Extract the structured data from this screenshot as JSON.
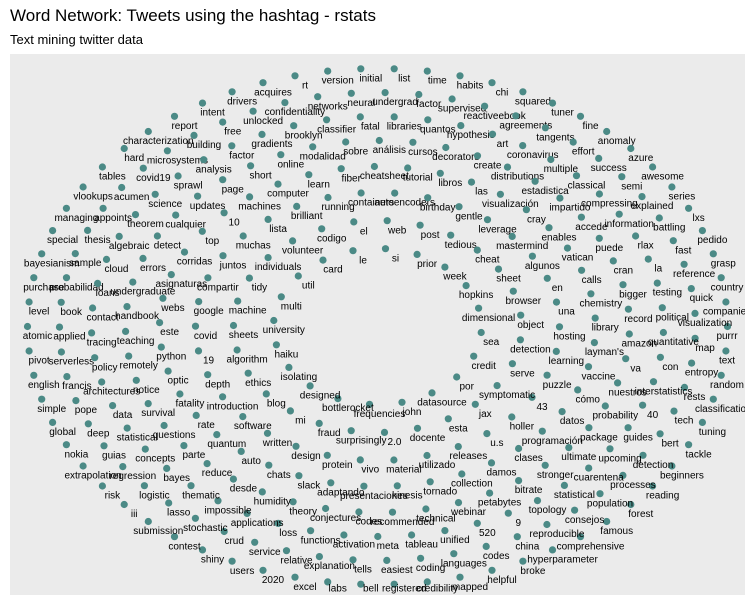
{
  "title": "Word Network: Tweets using the hashtag - rstats",
  "subtitle": "Text mining twitter data",
  "colors": {
    "node": "#4b8a86",
    "panel": "#ebebeb",
    "background": "#ffffff"
  },
  "chart_data": {
    "type": "network",
    "layout": "circular (nodes placed around an ellipse)",
    "grid": false,
    "legend": "none",
    "nodes": [
      "purrr",
      "text",
      "random",
      "classification",
      "tuning",
      "tackle",
      "beginners",
      "reading",
      "forest",
      "famous",
      "comprehensive",
      "hyperparameter",
      "broke",
      "helpful",
      "mapped",
      "credibility",
      "registered",
      "bell",
      "labs",
      "excel",
      "2020",
      "users",
      "shiny",
      "contest",
      "submission",
      "iii",
      "risk",
      "extrapolation",
      "nokia",
      "global",
      "simple",
      "english",
      "pivot",
      "atomic",
      "level",
      "purchase",
      "bayesianism",
      "special",
      "managing",
      "vlookups",
      "tables",
      "hard",
      "characterization",
      "report",
      "intent",
      "drivers",
      "acquires",
      "rt",
      "version",
      "initial",
      "list",
      "time",
      "habits",
      "chi",
      "squared",
      "tuner",
      "fine",
      "anomaly",
      "azure",
      "awesome",
      "series",
      "lxs",
      "pedido",
      "grasp",
      "country",
      "companies",
      "tech",
      "bert",
      "detection",
      "processes",
      "population",
      "consejos",
      "reproducible",
      "china",
      "codes",
      "languages",
      "coding",
      "easiest",
      "tells",
      "explanation",
      "relative",
      "service",
      "crud",
      "stochastic",
      "lasso",
      "logistic",
      "regression",
      "guias",
      "deep",
      "pope",
      "francis",
      "serverless",
      "applied",
      "book",
      "probabilidad",
      "sample",
      "thesis",
      "appoints",
      "acumen",
      "covid19",
      "microsystems",
      "building",
      "free",
      "unlocked",
      "confidentiality",
      "networks",
      "neural",
      "undergrad",
      "factor",
      "supervised",
      "reactiveebook",
      "agreements",
      "tangents",
      "effort",
      "success",
      "semi",
      "explained",
      "battling",
      "fast",
      "reference",
      "quick",
      "visualization",
      "map",
      "entropy",
      "rests",
      "cuarentena",
      "statistical",
      "topology",
      "9",
      "520",
      "unified",
      "tableau",
      "meta",
      "activation",
      "functions",
      "loss",
      "applications",
      "impossible",
      "thematic",
      "bayes",
      "concepts",
      "statistical",
      "data",
      "architectures",
      "policy",
      "tracing",
      "contact",
      "loans",
      "cloud",
      "algebraic",
      "theorem",
      "science",
      "sprawl",
      "analysis",
      "factor",
      "gradients",
      "brooklyn",
      "classifier",
      "fatal",
      "libraries",
      "quantos",
      "hypothesis",
      "art",
      "coronavirus",
      "multiple",
      "classical",
      "compressing",
      "information",
      "rlax",
      "la",
      "testing",
      "political",
      "quantitative",
      "con",
      "interstatistics",
      "40",
      "guides",
      "upcoming",
      "petabytes",
      "webinar",
      "technical",
      "recommended",
      "codes",
      "conjectures",
      "theory",
      "humidity",
      "desde",
      "reduce",
      "parte",
      "questions",
      "survival",
      "notice",
      "remotely",
      "teaching",
      "handbook",
      "undergraduate",
      "errors",
      "detect",
      "cualquier",
      "updates",
      "page",
      "short",
      "online",
      "modalidad",
      "sobre",
      "análisis",
      "cursos",
      "decorators",
      "create",
      "distributions",
      "estadistica",
      "impartido",
      "accede",
      "puede",
      "cran",
      "bigger",
      "record",
      "amazon",
      "va",
      "nuestros",
      "probability",
      "package",
      "ultimate",
      "stronger",
      "bitrate",
      "kinesis",
      "presentaciones",
      "adaptando",
      "slack",
      "chats",
      "auto",
      "quantum",
      "rate",
      "fatality",
      "optic",
      "python",
      "este",
      "webs",
      "asignaturas",
      "corridas",
      "top",
      "10",
      "machines",
      "computer",
      "learn",
      "fiber",
      "cheatsheet",
      "tutorial",
      "libros",
      "las",
      "visualización",
      "cray",
      "enables",
      "vatican",
      "calls",
      "chemistry",
      "library",
      "layman's",
      "vaccine",
      "cómo",
      "datos",
      "programación",
      "clases",
      "damos",
      "collection",
      "tornado",
      "protein",
      "design",
      "written",
      "software",
      "introduction",
      "depth",
      "19",
      "covid",
      "google",
      "compartir",
      "juntos",
      "muchas",
      "lista",
      "brilliant",
      "running",
      "containers",
      "autoencoders",
      "birthday",
      "gentle",
      "leverage",
      "mastermind",
      "algunos",
      "en",
      "una",
      "hosting",
      "learning",
      "puzzle",
      "43",
      "holler",
      "u.s",
      "releases",
      "utilizado",
      "material",
      "vivo",
      "mi",
      "blog",
      "ethics",
      "algorithm",
      "sheets",
      "machine",
      "tidy",
      "individuals",
      "volunteer",
      "codigo",
      "el",
      "web",
      "post",
      "tedious",
      "cheat",
      "sheet",
      "browser",
      "object",
      "detection",
      "serve",
      "symptomatic",
      "jax",
      "esta",
      "docente",
      "2.0",
      "surprisingly",
      "fraud",
      "isolating",
      "haiku",
      "university",
      "multi",
      "util",
      "card",
      "le",
      "si",
      "prior",
      "week",
      "hopkins",
      "dimensional",
      "sea",
      "credit",
      "por",
      "datasource",
      "john",
      "frequencies",
      "bottlerocket",
      "designed"
    ]
  }
}
